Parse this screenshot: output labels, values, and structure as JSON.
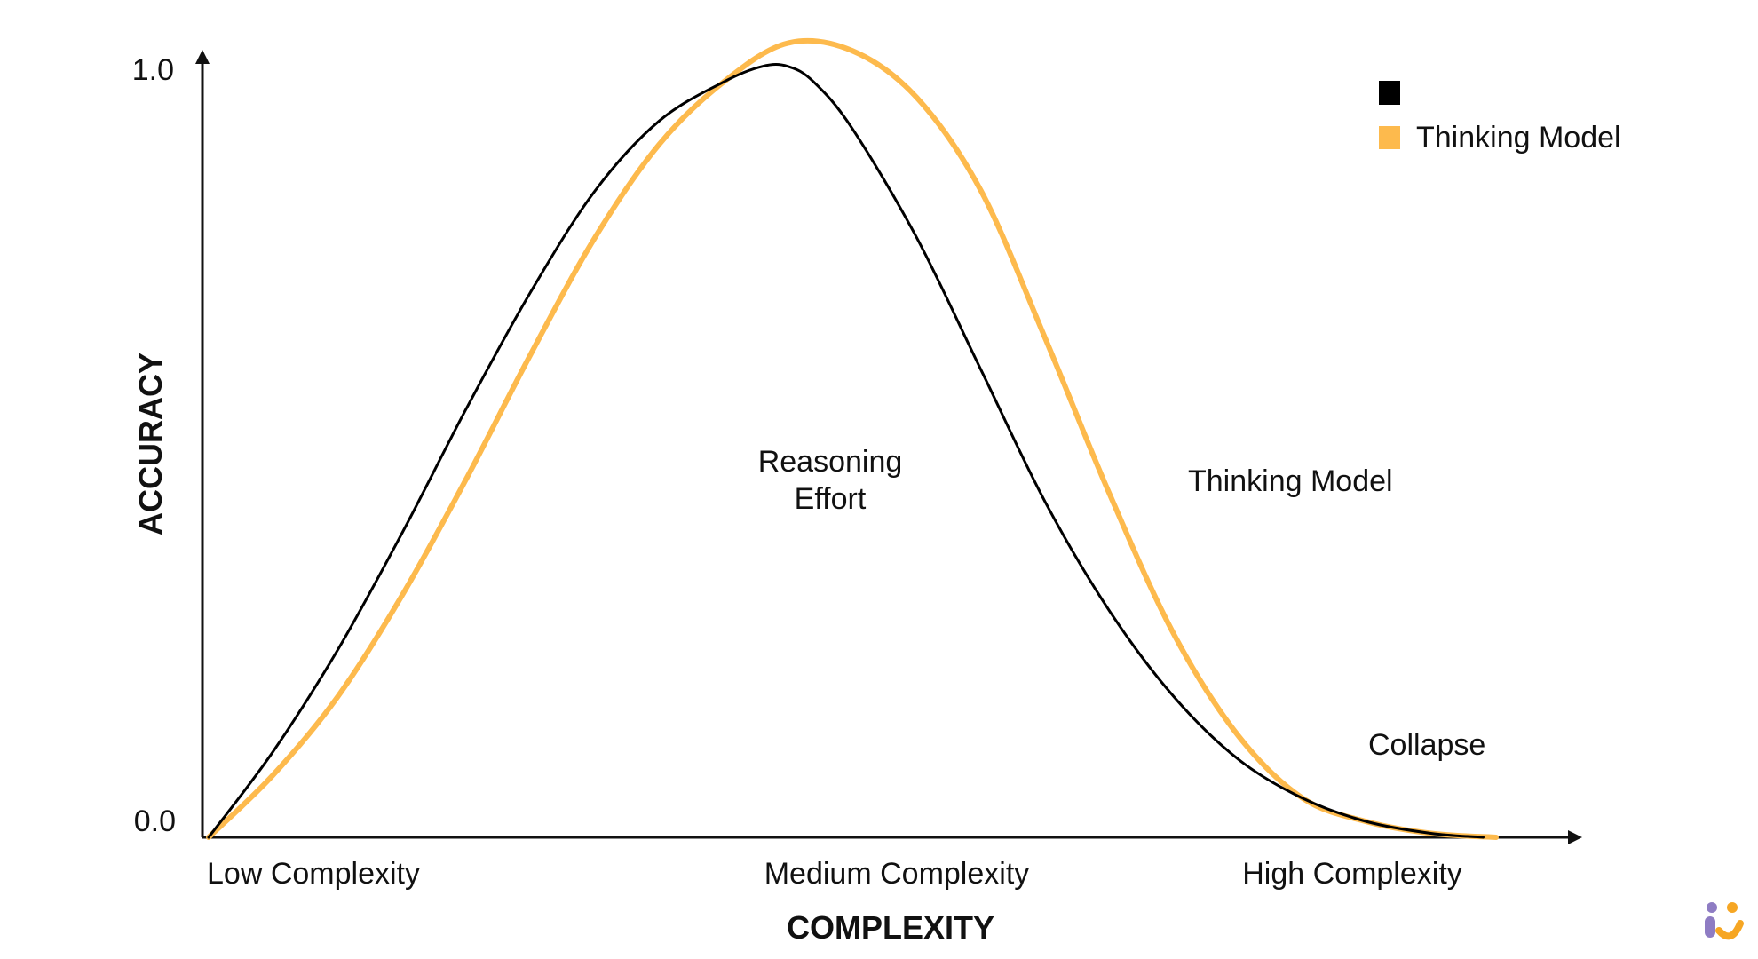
{
  "chart_data": {
    "type": "line",
    "xlabel": "COMPLEXITY",
    "ylabel": "ACCURACY",
    "ylim": [
      0,
      1
    ],
    "xlim": [
      0,
      1
    ],
    "x_tick_labels": [
      "Low Complexity",
      "Medium Complexity",
      "High Complexity"
    ],
    "y_tick_labels": [
      "1.0",
      "0.0"
    ],
    "legend_position": "top-right",
    "grid": false,
    "series": [
      {
        "name": "",
        "color": "#000000",
        "x": [
          0.0,
          0.05,
          0.1,
          0.15,
          0.2,
          0.25,
          0.3,
          0.35,
          0.4,
          0.43,
          0.45,
          0.47,
          0.5,
          0.55,
          0.6,
          0.65,
          0.7,
          0.75,
          0.8,
          0.85,
          0.9,
          0.95,
          0.99
        ],
        "values": [
          0.0,
          0.11,
          0.24,
          0.39,
          0.55,
          0.7,
          0.83,
          0.92,
          0.97,
          0.99,
          0.99,
          0.97,
          0.91,
          0.77,
          0.6,
          0.43,
          0.29,
          0.18,
          0.1,
          0.05,
          0.02,
          0.005,
          0.0
        ]
      },
      {
        "name": "Thinking Model",
        "color": "#FDBA4D",
        "x": [
          0.0,
          0.05,
          0.1,
          0.15,
          0.2,
          0.25,
          0.3,
          0.35,
          0.4,
          0.45,
          0.5,
          0.55,
          0.6,
          0.65,
          0.7,
          0.75,
          0.8,
          0.85,
          0.9,
          0.95,
          1.0
        ],
        "values": [
          0.0,
          0.08,
          0.18,
          0.31,
          0.46,
          0.62,
          0.77,
          0.89,
          0.97,
          1.02,
          1.01,
          0.95,
          0.83,
          0.64,
          0.44,
          0.26,
          0.13,
          0.05,
          0.02,
          0.005,
          0.0
        ]
      }
    ],
    "annotations": [
      {
        "text": "Reasoning\nEffort",
        "x": 0.45,
        "y": 0.5
      },
      {
        "text": "Thinking Model",
        "x": 0.715,
        "y": 0.47
      },
      {
        "text": "Collapse",
        "x": 0.845,
        "y": 0.12
      }
    ]
  },
  "labels": {
    "y_top": "1.0",
    "y_bottom": "0.0",
    "x_low": "Low Complexity",
    "x_medium": "Medium Complexity",
    "x_high": "High Complexity",
    "x_axis_title": "COMPLEXITY",
    "y_axis_title": "ACCURACY",
    "annotation_reasoning_line1": "Reasoning",
    "annotation_reasoning_line2": "Effort",
    "annotation_thinking": "Thinking Model",
    "annotation_collapse": "Collapse",
    "legend_thinking": "Thinking Model"
  },
  "colors": {
    "non_thinking": "#000000",
    "thinking": "#FDBA4D",
    "logo_purple": "#8E7CC3",
    "logo_orange": "#F6A623"
  }
}
